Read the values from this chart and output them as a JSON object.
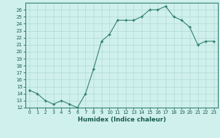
{
  "x": [
    0,
    1,
    2,
    3,
    4,
    5,
    6,
    7,
    8,
    9,
    10,
    11,
    12,
    13,
    14,
    15,
    16,
    17,
    18,
    19,
    20,
    21,
    22,
    23
  ],
  "y": [
    14.5,
    14.0,
    13.0,
    12.5,
    13.0,
    12.5,
    12.0,
    14.0,
    17.5,
    21.5,
    22.5,
    24.5,
    24.5,
    24.5,
    25.0,
    26.0,
    26.0,
    26.5,
    25.0,
    24.5,
    23.5,
    21.0,
    21.5,
    21.5
  ],
  "xlabel": "Humidex (Indice chaleur)",
  "ylim": [
    12,
    27
  ],
  "xlim": [
    -0.5,
    23.5
  ],
  "yticks": [
    12,
    13,
    14,
    15,
    16,
    17,
    18,
    19,
    20,
    21,
    22,
    23,
    24,
    25,
    26
  ],
  "xticks": [
    0,
    1,
    2,
    3,
    4,
    5,
    6,
    7,
    8,
    9,
    10,
    11,
    12,
    13,
    14,
    15,
    16,
    17,
    18,
    19,
    20,
    21,
    22,
    23
  ],
  "line_color": "#2e7d6e",
  "bg_color": "#cff0ec",
  "grid_color": "#b0d8d2",
  "xlabel_color": "#1a5a52",
  "tick_color": "#1a5a52",
  "spine_color": "#2e7d6e"
}
